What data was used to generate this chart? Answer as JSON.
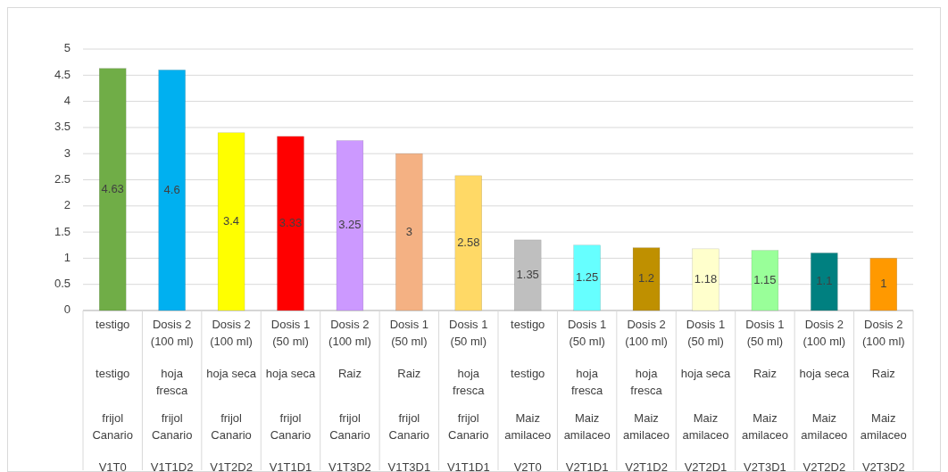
{
  "chart_data": {
    "type": "bar",
    "categories": [
      "testigo\ntestigo\nfrijol Canario\nV1T0",
      "Dosis 2 (100 ml)\nhoja fresca\nfrijol Canario\nV1T1D2",
      "Dosis 2 (100 ml)\nhoja seca\nfrijol Canario\nV1T2D2",
      "Dosis 1 (50 ml)\nhoja seca\nfrijol Canario\nV1T1D1",
      "Dosis 2 (100 ml)\nRaiz\nfrijol Canario\nV1T3D2",
      "Dosis 1 (50 ml)\nRaiz\nfrijol Canario\nV1T3D1",
      "Dosis 1 (50 ml)\nhoja fresca\nfrijol Canario\nV1T1D1",
      "testigo\ntestigo\nMaiz amilaceo\nV2T0",
      "Dosis 1 (50 ml)\nhoja fresca\nMaiz amilaceo\nV2T1D1",
      "Dosis 2 (100 ml)\nhoja fresca\nMaiz amilaceo\nV2T1D2",
      "Dosis 1 (50 ml)\nhoja seca\nMaiz amilaceo\nV2T2D1",
      "Dosis 1 (50 ml)\nRaiz\nMaiz amilaceo\nV2T3D1",
      "Dosis 2 (100 ml)\nhoja seca\nMaiz amilaceo\nV2T2D2",
      "Dosis 2 (100 ml)\nRaiz\nMaiz amilaceo\nV2T3D2"
    ],
    "values": [
      4.63,
      4.6,
      3.4,
      3.33,
      3.25,
      3,
      2.58,
      1.35,
      1.25,
      1.2,
      1.18,
      1.15,
      1.1,
      1
    ],
    "colors": [
      "#70ad47",
      "#00b0f0",
      "#ffff00",
      "#ff0000",
      "#cc99ff",
      "#f4b183",
      "#ffd966",
      "#bfbfbf",
      "#66ffff",
      "#bf9000",
      "#ffffcc",
      "#99ff99",
      "#008080",
      "#ff9900"
    ],
    "data_labels": true,
    "ylim": [
      0,
      5
    ],
    "yticks": [
      0,
      0.5,
      1,
      1.5,
      2,
      2.5,
      3,
      3.5,
      4,
      4.5,
      5
    ],
    "grid": "y"
  }
}
